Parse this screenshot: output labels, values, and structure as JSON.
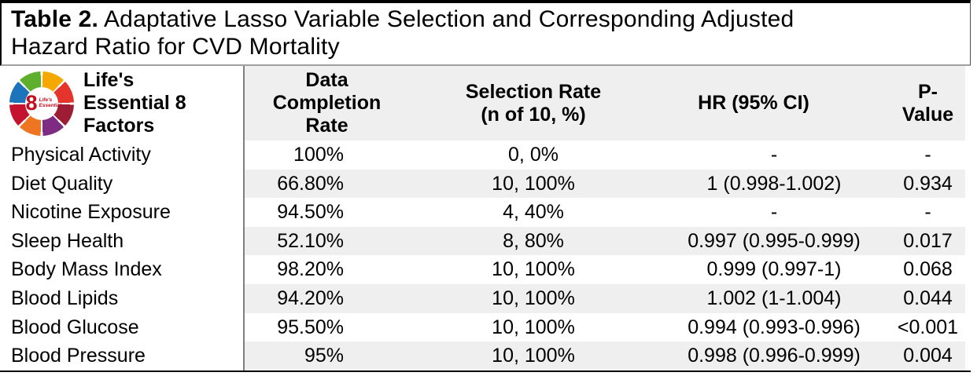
{
  "title": {
    "bold": "Table 2.",
    "line1_rest": " Adaptative Lasso Variable Selection and Corresponding Adjusted",
    "line2": "Hazard Ratio for CVD Mortality"
  },
  "logo": {
    "name": "Life's Essential 8 logo",
    "center_number": "8",
    "center_text": "Life's Essential",
    "accent_color": "#c10e21",
    "segment_colors": [
      "#f5a800",
      "#e4342c",
      "#9d1d34",
      "#7d2b83",
      "#ee7623",
      "#c4122f",
      "#1e74bb",
      "#5fae2c"
    ]
  },
  "colors": {
    "row_stripe": "#efefef",
    "column_divider": "#7f7f7f",
    "border": "#000000"
  },
  "table": {
    "headers": {
      "factors": "Life's\nEssential 8\nFactors",
      "completion": "Data\nCompletion\nRate",
      "selection": "Selection Rate\n(n of 10, %)",
      "hr": "HR (95% CI)",
      "pvalue": "P-\nValue"
    },
    "rows": [
      [
        "Physical Activity",
        "100%",
        "0, 0%",
        "-",
        "-"
      ],
      [
        "Diet Quality",
        "66.80%",
        "10, 100%",
        "1 (0.998-1.002)",
        "0.934"
      ],
      [
        "Nicotine Exposure",
        "94.50%",
        "4, 40%",
        "-",
        "-"
      ],
      [
        "Sleep Health",
        "52.10%",
        "8, 80%",
        "0.997 (0.995-0.999)",
        "0.017"
      ],
      [
        "Body Mass Index",
        "98.20%",
        "10, 100%",
        "0.999 (0.997-1)",
        "0.068"
      ],
      [
        "Blood Lipids",
        "94.20%",
        "10, 100%",
        "1.002 (1-1.004)",
        "0.044"
      ],
      [
        "Blood Glucose",
        "95.50%",
        "10, 100%",
        "0.994 (0.993-0.996)",
        "<0.001"
      ],
      [
        "Blood Pressure",
        "95%",
        "10, 100%",
        "0.998 (0.996-0.999)",
        "0.004"
      ]
    ]
  }
}
